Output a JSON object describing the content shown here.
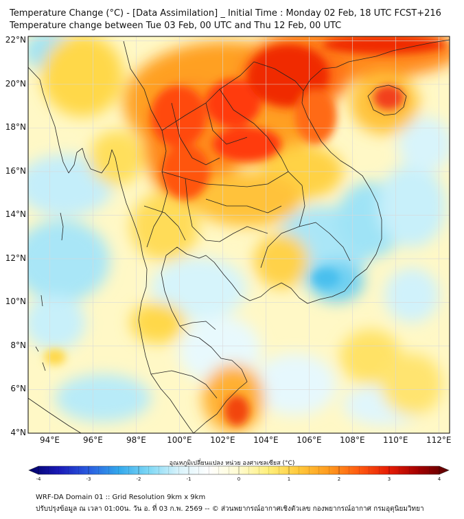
{
  "title": {
    "line1": "Temperature Change (°C) - [Data Assimilation] _ Initial Time : Monday 02 Feb, 18 UTC FCST+216",
    "line2": "Temperature change between Tue 03 Feb, 00 UTC and Thu 12 Feb, 00 UTC"
  },
  "map": {
    "lat_ticks": [
      "22°N",
      "20°N",
      "18°N",
      "16°N",
      "14°N",
      "12°N",
      "10°N",
      "8°N",
      "6°N",
      "4°N"
    ],
    "lon_ticks": [
      "94°E",
      "96°E",
      "98°E",
      "100°E",
      "102°E",
      "104°E",
      "106°E",
      "108°E",
      "110°E",
      "112°E"
    ],
    "lat_range": [
      4,
      22.2
    ],
    "lon_range": [
      93,
      112.5
    ],
    "gridlines": true,
    "field": "temperature change",
    "warm_regions": [
      "northern Thailand",
      "northern Laos",
      "northern Vietnam",
      "Hainan",
      "south China coast",
      "east coast Malay peninsula"
    ],
    "cool_regions": [
      "Cambodia",
      "southern Vietnam",
      "Bay of Bengal",
      "Andaman Sea",
      "Gulf of Thailand",
      "South China Sea"
    ]
  },
  "colorbar": {
    "title": "อุณหภูมิเปลี่ยนแปลง หน่วย องศาเซลเซียส (°C)",
    "ticks": [
      "-4",
      "-3",
      "-2",
      "-1",
      "0",
      "1",
      "2",
      "3",
      "4"
    ],
    "range": [
      -4,
      4
    ],
    "colors": [
      "#000066",
      "#1a1ab8",
      "#2a5de0",
      "#33a8ec",
      "#7fd8f5",
      "#d9f3fb",
      "#ffffff",
      "#fffbd0",
      "#ffef7a",
      "#ffc83a",
      "#ff9a1e",
      "#ff5a10",
      "#e61c05",
      "#a20000",
      "#5a0000"
    ]
  },
  "footer": {
    "line1": "WRF-DA Domain 01 :: Grid Resolution 9km x 9km",
    "line2": "ปรับปรุงข้อมูล ณ เวลา 01:00น. วัน อ. ที่ 03 ก.พ. 2569 -- © ส่วนพยากรณ์อากาศเชิงตัวเลข กองพยากรณ์อากาศ กรมอุตุนิยมวิทยา"
  }
}
